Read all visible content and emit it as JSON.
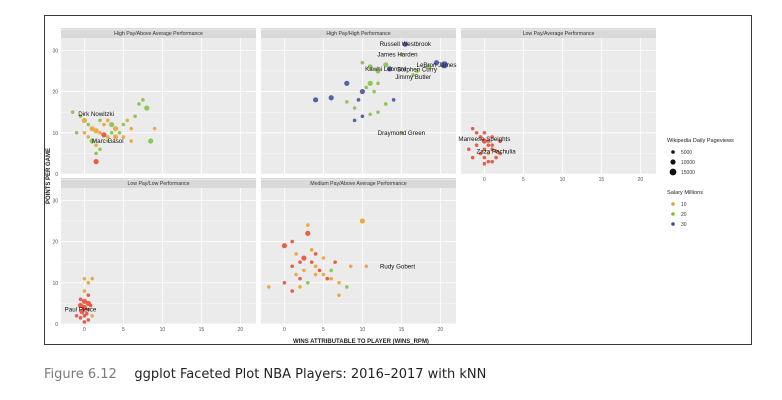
{
  "caption": {
    "number": "Figure 6.12",
    "text": "ggplot Faceted Plot NBA Players: 2016–2017 with kNN"
  },
  "colors": {
    "panel_bg": "#ebebeb",
    "strip_bg": "#d9d9d9",
    "grid": "#ffffff",
    "salary_low": "#e8452a",
    "salary_mid_low": "#e8a02a",
    "salary_mid": "#7fbf3f",
    "salary_high": "#3a4a9f"
  },
  "chart_data": {
    "type": "scatter",
    "xlabel": "WINS ATTRIBUTABLE TO PLAYER (WINS_RPM)",
    "ylabel": "POINTS PER GAME",
    "xlim": [
      -3,
      22
    ],
    "ylim": [
      0,
      33
    ],
    "x_ticks": [
      0,
      5,
      10,
      15,
      20
    ],
    "y_ticks": [
      0,
      10,
      20,
      30
    ],
    "grid": true,
    "legend_position": "right",
    "legends": [
      {
        "title": "Wikipedia Daily Pageviews",
        "kind": "size",
        "entries": [
          "5000",
          "10000",
          "15000"
        ]
      },
      {
        "title": "Salary Millions",
        "kind": "color",
        "entries": [
          "10",
          "20",
          "30"
        ]
      }
    ],
    "facets": [
      {
        "title": "High Pay/Above Average Performance",
        "labels": [
          {
            "text": "Dirk Nowitzki",
            "x": 1.5,
            "y": 14.5
          },
          {
            "text": "Marc Gasol",
            "x": 3.0,
            "y": 8.0
          }
        ],
        "points": [
          [
            -1.5,
            15,
            "mid",
            1
          ],
          [
            -0.5,
            14,
            "mid",
            1
          ],
          [
            0,
            13,
            "mid_low",
            2
          ],
          [
            0.5,
            12,
            "mid",
            1
          ],
          [
            1,
            11,
            "mid_low",
            2
          ],
          [
            1.5,
            10.5,
            "mid_low",
            2
          ],
          [
            2,
            10,
            "mid_low",
            1
          ],
          [
            2.5,
            9.5,
            "low",
            2
          ],
          [
            3,
            9,
            "mid_low",
            1
          ],
          [
            3.5,
            10,
            "mid",
            1
          ],
          [
            4,
            11,
            "mid_low",
            2
          ],
          [
            4.5,
            10,
            "mid",
            1
          ],
          [
            5,
            12,
            "mid",
            1
          ],
          [
            5.5,
            13,
            "mid_low",
            1
          ],
          [
            6,
            11,
            "mid_low",
            1
          ],
          [
            6.5,
            14,
            "mid",
            1
          ],
          [
            7,
            17,
            "mid",
            1
          ],
          [
            7.5,
            18,
            "mid",
            1
          ],
          [
            8,
            16,
            "mid",
            2
          ],
          [
            0.5,
            9,
            "mid_low",
            1
          ],
          [
            1,
            8,
            "mid",
            2
          ],
          [
            1.5,
            7,
            "mid_low",
            1
          ],
          [
            2,
            6,
            "mid",
            1
          ],
          [
            1.5,
            5,
            "mid",
            1
          ],
          [
            1.5,
            3,
            "low",
            2
          ],
          [
            2.5,
            12,
            "mid_low",
            1
          ],
          [
            3,
            13,
            "mid_low",
            1
          ],
          [
            3.5,
            12,
            "mid",
            2
          ],
          [
            5,
            9,
            "mid_low",
            1
          ],
          [
            6,
            8,
            "mid_low",
            1
          ],
          [
            8.5,
            8,
            "mid",
            2
          ],
          [
            9,
            11,
            "mid_low",
            1
          ],
          [
            2,
            13,
            "mid",
            1
          ],
          [
            0,
            10,
            "mid_low",
            1
          ],
          [
            -1,
            10,
            "mid",
            1
          ],
          [
            3,
            8,
            "mid",
            1
          ],
          [
            4,
            9,
            "mid_low",
            2
          ]
        ]
      },
      {
        "title": "High Pay/High Performance",
        "labels": [
          {
            "text": "Russell Westbrook",
            "x": 15.5,
            "y": 31.5
          },
          {
            "text": "James Harden",
            "x": 14.5,
            "y": 29
          },
          {
            "text": "LeBron James",
            "x": 19.5,
            "y": 26.5
          },
          {
            "text": "Kawhi Leonard",
            "x": 13.0,
            "y": 25.5
          },
          {
            "text": "Stephen Curry",
            "x": 17.0,
            "y": 25.3
          },
          {
            "text": "Jimmy Butler",
            "x": 16.5,
            "y": 23.5
          },
          {
            "text": "Draymond Green",
            "x": 15.0,
            "y": 10.0
          }
        ],
        "points": [
          [
            15.5,
            31.5,
            "high",
            2
          ],
          [
            15,
            29,
            "mid",
            1
          ],
          [
            20.5,
            26.5,
            "high",
            3
          ],
          [
            13.5,
            25.5,
            "high",
            2
          ],
          [
            18.5,
            26,
            "mid",
            2
          ],
          [
            19.5,
            27,
            "high",
            2
          ],
          [
            16.5,
            24,
            "mid",
            1
          ],
          [
            13,
            26.5,
            "mid",
            2
          ],
          [
            12,
            25,
            "mid",
            2
          ],
          [
            11,
            22,
            "mid",
            2
          ],
          [
            10,
            20,
            "high",
            2
          ],
          [
            9.5,
            18,
            "high",
            1
          ],
          [
            8,
            17.5,
            "mid",
            1
          ],
          [
            9,
            16,
            "mid",
            1
          ],
          [
            10,
            14,
            "high",
            1
          ],
          [
            11,
            14.5,
            "mid",
            1
          ],
          [
            12,
            15,
            "mid",
            1
          ],
          [
            13,
            17,
            "mid",
            1
          ],
          [
            4,
            18,
            "high",
            2
          ],
          [
            6,
            18.5,
            "high",
            2
          ],
          [
            8,
            22,
            "high",
            2
          ],
          [
            10,
            27,
            "mid",
            1
          ],
          [
            11,
            26,
            "mid",
            2
          ],
          [
            12,
            22,
            "mid",
            1
          ],
          [
            14,
            18,
            "high",
            1
          ],
          [
            15,
            10,
            "mid",
            1
          ],
          [
            17,
            25,
            "mid",
            1
          ],
          [
            11.5,
            20,
            "mid",
            1
          ],
          [
            10.5,
            21,
            "mid",
            1
          ],
          [
            9,
            13,
            "high",
            1
          ]
        ]
      },
      {
        "title": "Low Pay/Average Performance",
        "labels": [
          {
            "text": "Marreese Speights",
            "x": 0,
            "y": 8.5
          },
          {
            "text": "Zaza Pachulia",
            "x": 1.5,
            "y": 5.5
          }
        ],
        "points": [
          [
            -1.5,
            11,
            "low",
            1
          ],
          [
            -1,
            10,
            "low",
            1
          ],
          [
            -0.5,
            9,
            "low",
            1
          ],
          [
            0,
            8,
            "low",
            2
          ],
          [
            0.5,
            7,
            "low",
            1
          ],
          [
            1,
            6,
            "low",
            1
          ],
          [
            1.5,
            5.5,
            "low",
            1
          ],
          [
            -0.5,
            5,
            "low",
            1
          ],
          [
            0,
            4,
            "low",
            1
          ],
          [
            0.5,
            3,
            "low",
            1
          ],
          [
            1,
            7,
            "low",
            1
          ],
          [
            -1,
            7,
            "low",
            1
          ],
          [
            0.5,
            8,
            "low",
            1
          ],
          [
            2,
            8,
            "low",
            1
          ],
          [
            2,
            5,
            "low",
            1
          ],
          [
            -2,
            6,
            "low",
            1
          ],
          [
            0,
            10,
            "low",
            1
          ],
          [
            1,
            9,
            "low",
            1
          ],
          [
            0,
            6,
            "low",
            1
          ],
          [
            1.5,
            4,
            "low",
            1
          ],
          [
            -1.5,
            4,
            "low",
            1
          ],
          [
            0.5,
            5,
            "mid_low",
            1
          ],
          [
            0,
            2.5,
            "low",
            1
          ],
          [
            1,
            3,
            "low",
            1
          ]
        ]
      },
      {
        "title": "Low Pay/Low Performance",
        "labels": [
          {
            "text": "Paul Pierce",
            "x": -0.5,
            "y": 3.5
          }
        ],
        "points": [
          [
            0,
            11,
            "mid_low",
            1
          ],
          [
            0.5,
            10,
            "mid_low",
            1
          ],
          [
            1,
            11,
            "mid_low",
            1
          ],
          [
            0,
            8,
            "mid_low",
            1
          ],
          [
            0.5,
            7,
            "low",
            1
          ],
          [
            -0.5,
            6,
            "low",
            1
          ],
          [
            0,
            5.5,
            "low",
            2
          ],
          [
            0.5,
            5,
            "low",
            2
          ],
          [
            -0.5,
            4.5,
            "low",
            2
          ],
          [
            0,
            4,
            "low",
            2
          ],
          [
            0.5,
            3.5,
            "low",
            1
          ],
          [
            -0.3,
            3,
            "low",
            2
          ],
          [
            0.3,
            2.5,
            "low",
            1
          ],
          [
            0,
            2,
            "low",
            1
          ],
          [
            -0.5,
            1.5,
            "low",
            1
          ],
          [
            0.5,
            1,
            "low",
            1
          ],
          [
            0,
            0.5,
            "low",
            1
          ],
          [
            -1,
            2,
            "low",
            1
          ],
          [
            1,
            2,
            "mid_low",
            1
          ],
          [
            0.8,
            4.5,
            "low",
            1
          ]
        ]
      },
      {
        "title": "Medium Pay/Above Average Performance",
        "labels": [
          {
            "text": "Rudy Gobert",
            "x": 14.5,
            "y": 14.0
          }
        ],
        "points": [
          [
            -2,
            9,
            "mid_low",
            1
          ],
          [
            0,
            10,
            "low",
            1
          ],
          [
            0,
            19,
            "low",
            2
          ],
          [
            1,
            20,
            "low",
            1
          ],
          [
            1.5,
            17,
            "mid_low",
            1
          ],
          [
            2,
            15,
            "low",
            1
          ],
          [
            2.5,
            16,
            "low",
            2
          ],
          [
            3,
            24,
            "mid_low",
            1
          ],
          [
            3,
            22,
            "low",
            2
          ],
          [
            3.5,
            18,
            "mid_low",
            1
          ],
          [
            4,
            14,
            "mid_low",
            1
          ],
          [
            4.5,
            13,
            "low",
            1
          ],
          [
            5,
            12,
            "mid_low",
            1
          ],
          [
            5,
            16,
            "mid_low",
            1
          ],
          [
            5.5,
            11,
            "low",
            1
          ],
          [
            6,
            13,
            "mid",
            1
          ],
          [
            6.5,
            15,
            "low",
            1
          ],
          [
            7,
            10,
            "mid_low",
            1
          ],
          [
            7,
            7,
            "mid_low",
            1
          ],
          [
            8,
            9,
            "mid",
            1
          ],
          [
            8.5,
            14,
            "mid_low",
            1
          ],
          [
            10,
            25,
            "mid_low",
            2
          ],
          [
            10.5,
            14,
            "mid_low",
            1
          ],
          [
            1,
            14,
            "low",
            1
          ],
          [
            1.5,
            12,
            "mid_low",
            1
          ],
          [
            2,
            11,
            "low",
            1
          ],
          [
            2.5,
            13,
            "mid_low",
            1
          ],
          [
            3.5,
            15,
            "low",
            1
          ],
          [
            4,
            12,
            "mid_low",
            1
          ],
          [
            1,
            8,
            "low",
            1
          ],
          [
            2,
            9,
            "mid_low",
            1
          ],
          [
            4,
            17,
            "low",
            1
          ],
          [
            6,
            11,
            "mid_low",
            1
          ],
          [
            3,
            10,
            "mid",
            1
          ]
        ]
      }
    ]
  }
}
